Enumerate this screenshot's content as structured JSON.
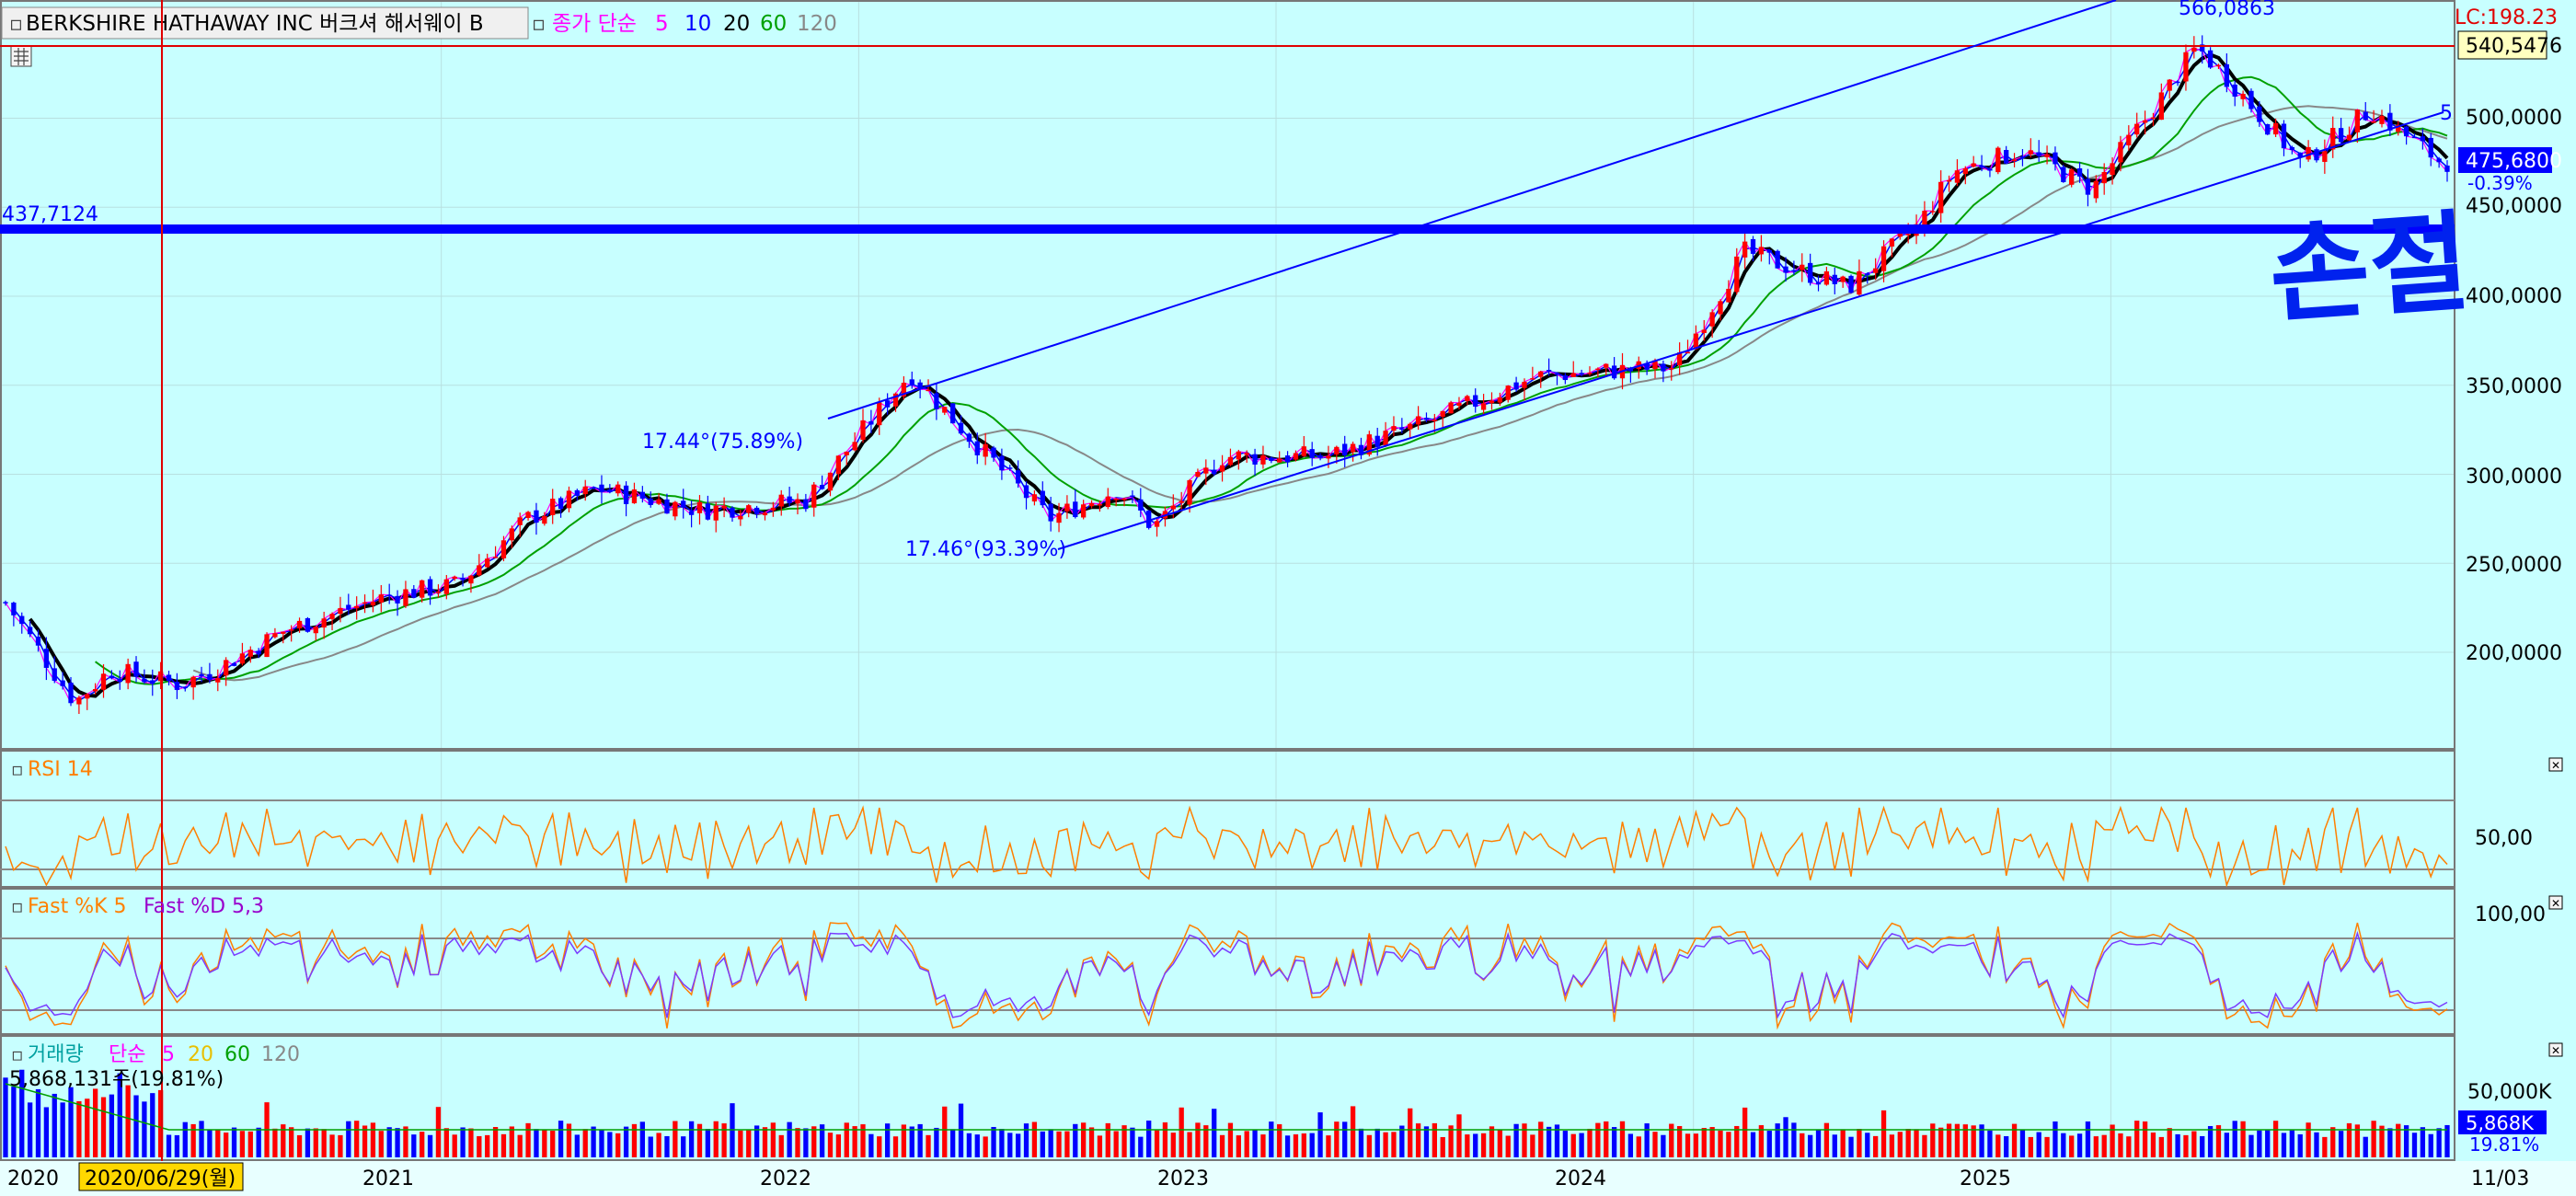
{
  "header": {
    "stock_name": "BERKSHIRE HATHAWAY INC  버크셔 해서웨이 B",
    "ma_label": "종가 단순",
    "ma_periods": [
      "5",
      "10",
      "20",
      "60",
      "120"
    ],
    "lc_label": "LC:198.23"
  },
  "price_panel": {
    "axis_ticks": [
      "500,0000",
      "450,0000",
      "400,0000",
      "350,0000",
      "300,0000",
      "250,0000",
      "200,0000"
    ],
    "top_line_value": "540,5476",
    "current_price": "475,6800",
    "current_change": "-0.39%",
    "horizontal_line_value": "437,7124",
    "channel_top_label": "566,0863",
    "channel_right_label": "5",
    "angle_label_1": "17.44°(75.89%)",
    "angle_label_2": "17.46°(93.39%)",
    "handwritten_note": "손절"
  },
  "rsi_panel": {
    "title": "RSI 14",
    "tick": "50,00"
  },
  "stoch_panel": {
    "title_k": "Fast %K 5",
    "title_d": "Fast %D 5,3",
    "tick": "100,00"
  },
  "volume_panel": {
    "title": "거래량",
    "ma_label": "단순",
    "ma_periods": [
      "5",
      "20",
      "60",
      "120"
    ],
    "info": "5,868,131주(19.81%)",
    "tick": "50,000K",
    "current": "5,868K",
    "pct": "19.81%"
  },
  "x_axis": {
    "labels": [
      "2020",
      "2021",
      "2022",
      "2023",
      "2024",
      "2025"
    ],
    "crosshair_date": "2020/06/29(월)",
    "end_label": "11/03"
  },
  "colors": {
    "background": "#c8ffff",
    "up_candle": "#ff0000",
    "down_candle": "#0000ff",
    "ma5": "#ff00ff",
    "ma10": "#0000ff",
    "ma20": "#000000",
    "ma60": "#00a000",
    "ma120": "#888888",
    "rsi": "#ff7f00"
  },
  "chart_data": {
    "type": "line",
    "title": "BERKSHIRE HATHAWAY INC 버크셔 해서웨이 B",
    "series": [
      {
        "name": "종가",
        "x": [
          "2020-01",
          "2020-03",
          "2020-04",
          "2020-06",
          "2020-07",
          "2020-09",
          "2020-12",
          "2021-02",
          "2021-04",
          "2021-06",
          "2021-09",
          "2021-12",
          "2022-03",
          "2022-05",
          "2022-07",
          "2022-09",
          "2022-10",
          "2022-12",
          "2023-03",
          "2023-06",
          "2023-09",
          "2023-11",
          "2024-01",
          "2024-03",
          "2024-06",
          "2024-08",
          "2024-09",
          "2024-11",
          "2025-01",
          "2025-03",
          "2025-04",
          "2025-05",
          "2025-07",
          "2025-09",
          "2025-11"
        ],
        "values": [
          228,
          172,
          190,
          182,
          190,
          212,
          232,
          238,
          275,
          292,
          280,
          285,
          357,
          315,
          275,
          292,
          270,
          310,
          310,
          330,
          355,
          358,
          360,
          425,
          405,
          440,
          470,
          482,
          460,
          512,
          540,
          520,
          475,
          505,
          475.68
        ]
      }
    ],
    "reference_lines": [
      {
        "value": 540.5476
      },
      {
        "value": 437.7124
      }
    ],
    "ylim": [
      150,
      550
    ]
  }
}
